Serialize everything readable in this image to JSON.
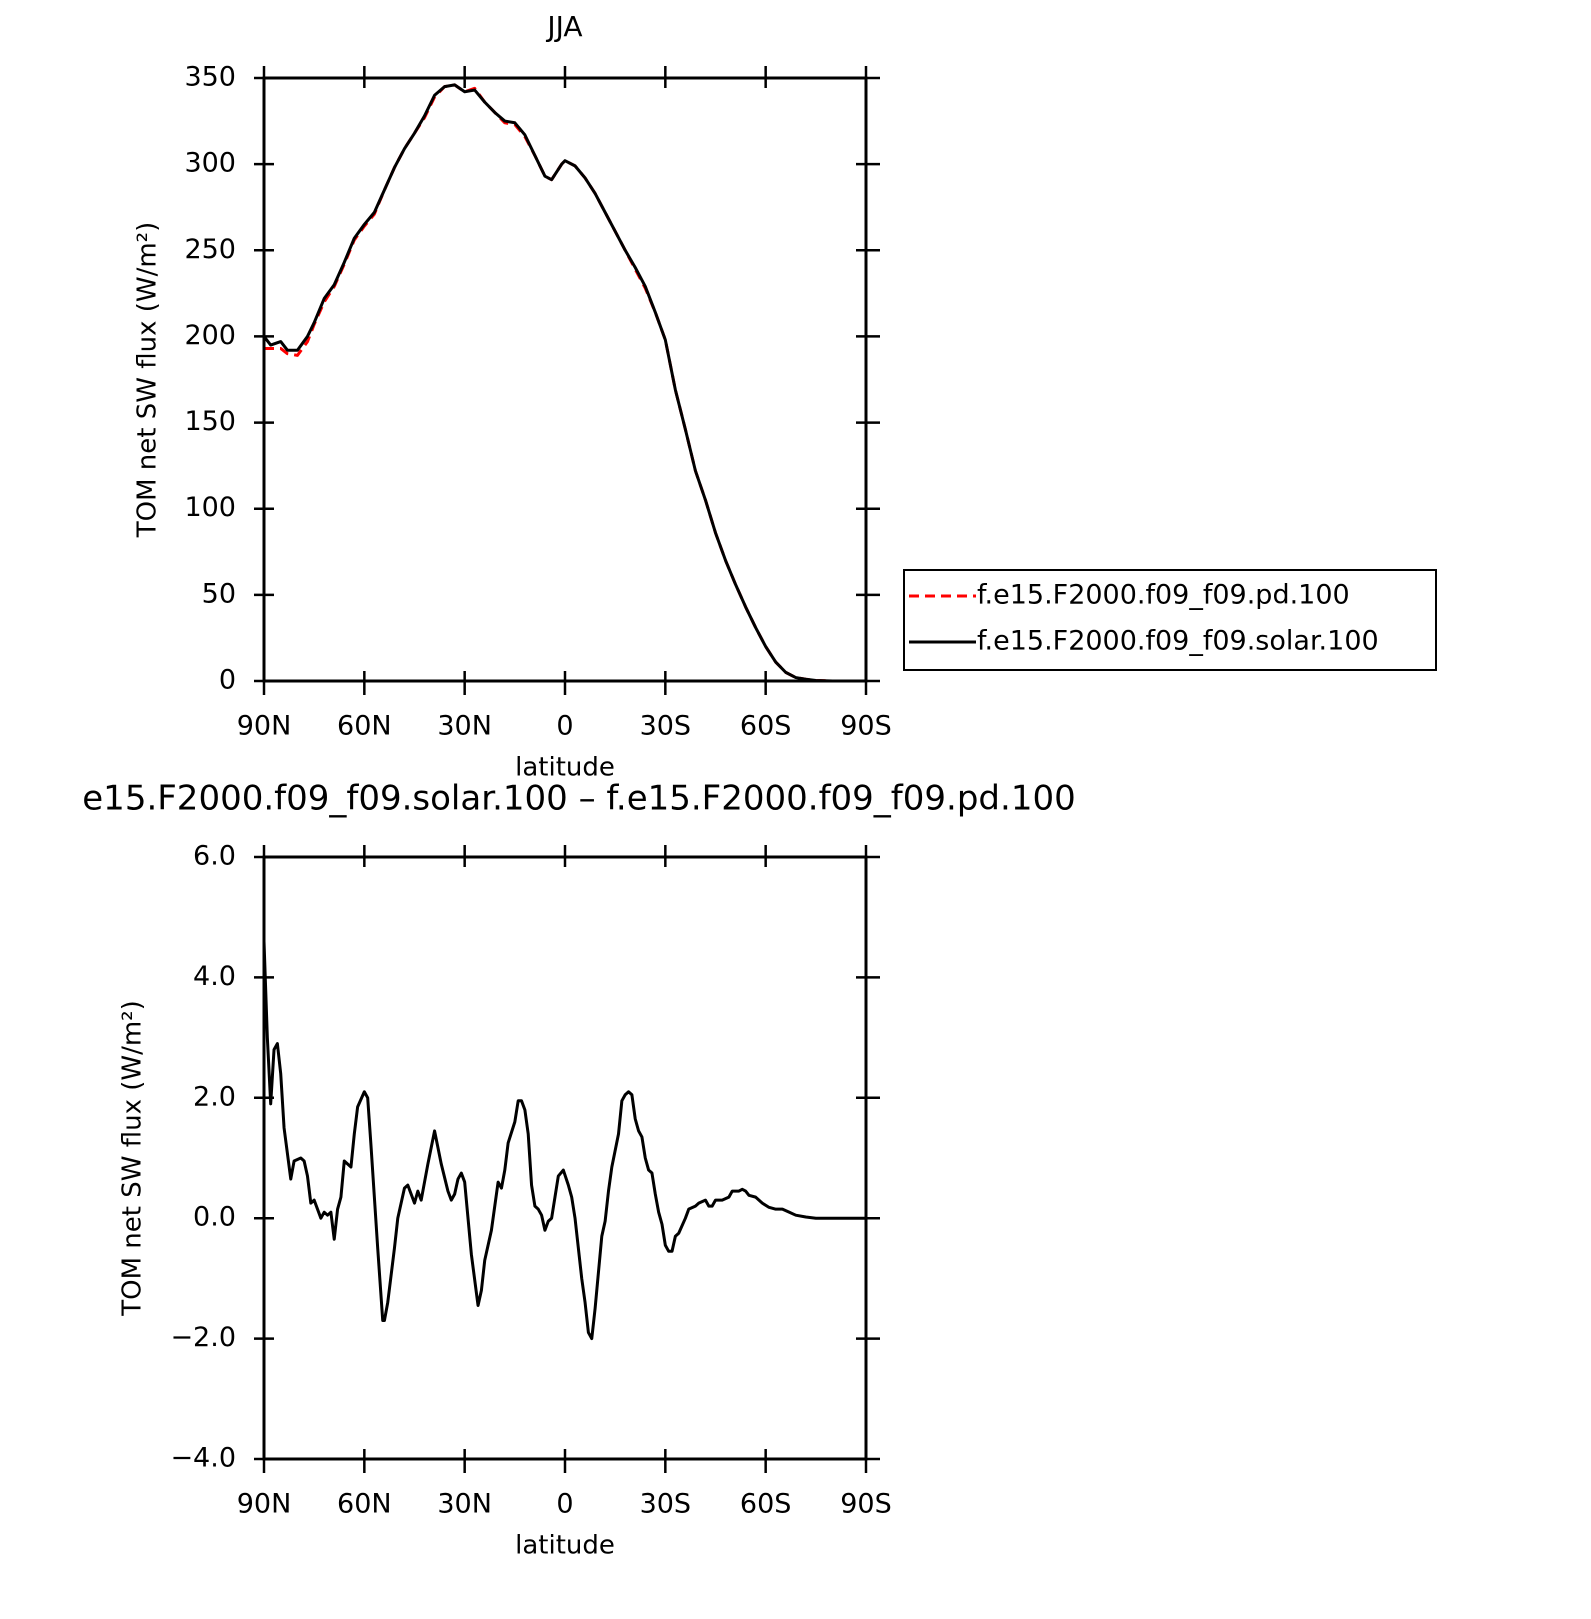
{
  "chart_data": [
    {
      "type": "line",
      "title": "JJA",
      "xlabel": "latitude",
      "ylabel": "TOM net SW flux (W/m²)",
      "x": [
        90,
        88,
        85,
        83,
        80,
        77,
        75,
        72,
        69,
        66,
        63,
        60,
        57,
        54,
        51,
        48,
        45,
        42,
        39,
        36,
        33,
        30,
        27,
        24,
        21,
        18,
        15,
        12,
        9,
        6,
        4,
        1,
        0,
        -3,
        -6,
        -9,
        -12,
        -15,
        -18,
        -21,
        -24,
        -27,
        -30,
        -33,
        -36,
        -39,
        -42,
        -45,
        -48,
        -51,
        -54,
        -57,
        -60,
        -63,
        -66,
        -69,
        -72,
        -75,
        -80,
        -85,
        -90
      ],
      "series": [
        {
          "name": "f.e15.F2000.f09_f09.pd.100",
          "color": "#ff0000",
          "linestyle": "dashed",
          "values": [
            193,
            193,
            193,
            190,
            189,
            197,
            207,
            220,
            229,
            242,
            256,
            264,
            271,
            285,
            298,
            309,
            318,
            327,
            339,
            345,
            346,
            342,
            344,
            336,
            330,
            324,
            323,
            316,
            305,
            293,
            291,
            300,
            302,
            299,
            292,
            283,
            272,
            261,
            250,
            239,
            228,
            214,
            198,
            169,
            146,
            122,
            105,
            86,
            70,
            56,
            43,
            31,
            20,
            11,
            5,
            2,
            1,
            0.3,
            0,
            0,
            0
          ]
        },
        {
          "name": "f.e15.F2000.f09_f09.solar.100",
          "color": "#000000",
          "linestyle": "solid",
          "values": [
            200,
            195,
            197,
            192,
            192,
            200,
            208,
            222,
            230,
            243,
            257,
            265,
            272,
            285,
            298,
            309,
            318,
            328,
            340,
            345,
            346,
            342,
            343,
            336,
            330,
            325,
            324,
            317,
            305,
            293,
            291,
            300,
            302,
            299,
            292,
            283,
            272,
            261,
            250,
            240,
            229,
            214,
            198,
            169,
            146,
            122,
            105,
            86,
            70,
            56,
            43,
            31,
            20,
            11,
            5,
            2,
            1,
            0.3,
            0,
            0,
            0
          ]
        }
      ],
      "xlim": [
        90,
        -90
      ],
      "xticks": [
        {
          "value": 90,
          "label": "90N"
        },
        {
          "value": 60,
          "label": "60N"
        },
        {
          "value": 30,
          "label": "30N"
        },
        0,
        {
          "value": -30,
          "label": "30S"
        },
        {
          "value": -60,
          "label": "60S"
        },
        {
          "value": -90,
          "label": "90S"
        }
      ],
      "ylim": [
        0,
        350
      ],
      "yticks": [
        0,
        50,
        100,
        150,
        200,
        250,
        300,
        350
      ],
      "legend": "right"
    },
    {
      "type": "line",
      "title": "e15.F2000.f09_f09.solar.100 – f.e15.F2000.f09_f09.pd.100",
      "xlabel": "latitude",
      "ylabel": "TOM net SW flux (W/m²)",
      "x": [
        90,
        89,
        88,
        87,
        86,
        85,
        84,
        82,
        81,
        79,
        78,
        77,
        76,
        75,
        73,
        72,
        71,
        70,
        69,
        68,
        67,
        66,
        64,
        63,
        62,
        60,
        59,
        58,
        56,
        54.5,
        54,
        53,
        51,
        50,
        48,
        47,
        45,
        44,
        43,
        41,
        39,
        37,
        35,
        34,
        33,
        32,
        31,
        30,
        28,
        26,
        25,
        24,
        22,
        20,
        19,
        18,
        17,
        15,
        14,
        13,
        12,
        11,
        10,
        9,
        8,
        7,
        6,
        5,
        4,
        3,
        2,
        0.5,
        -1,
        -2,
        -3,
        -5,
        -6,
        -7,
        -8,
        -9,
        -10,
        -11,
        -12,
        -13,
        -14,
        -16,
        -17,
        -18,
        -19,
        -20,
        -21,
        -22,
        -23,
        -24,
        -25,
        -26,
        -27,
        -28,
        -29,
        -30,
        -31,
        -32,
        -33,
        -34,
        -36,
        -37,
        -39,
        -40,
        -42,
        -43,
        -44,
        -45,
        -47,
        -49,
        -50,
        -52,
        -53,
        -54,
        -55,
        -57,
        -59,
        -61,
        -63,
        -65,
        -67,
        -69,
        -72,
        -75,
        -80,
        -90
      ],
      "series": [
        {
          "color": "#000000",
          "linestyle": "solid",
          "values": [
            4.6,
            3.0,
            1.9,
            2.8,
            2.9,
            2.4,
            1.5,
            0.65,
            0.95,
            1.0,
            0.95,
            0.7,
            0.25,
            0.3,
            0,
            0.1,
            0.05,
            0.1,
            -0.35,
            0.15,
            0.35,
            0.95,
            0.85,
            1.4,
            1.85,
            2.1,
            2.0,
            1.2,
            -0.5,
            -1.7,
            -1.7,
            -1.4,
            -0.5,
            0,
            0.5,
            0.55,
            0.25,
            0.45,
            0.3,
            0.9,
            1.45,
            0.9,
            0.45,
            0.3,
            0.4,
            0.65,
            0.75,
            0.6,
            -0.6,
            -1.45,
            -1.2,
            -0.7,
            -0.2,
            0.6,
            0.5,
            0.8,
            1.25,
            1.6,
            1.95,
            1.95,
            1.8,
            1.4,
            0.55,
            0.2,
            0.15,
            0.05,
            -0.2,
            -0.05,
            0,
            0.35,
            0.7,
            0.8,
            0.55,
            0.35,
            0,
            -1.0,
            -1.4,
            -1.9,
            -2.0,
            -1.5,
            -0.9,
            -0.3,
            -0.05,
            0.45,
            0.85,
            1.4,
            1.95,
            2.05,
            2.1,
            2.05,
            1.65,
            1.45,
            1.35,
            1.0,
            0.8,
            0.75,
            0.4,
            0.1,
            -0.1,
            -0.45,
            -0.55,
            -0.55,
            -0.3,
            -0.25,
            0,
            0.15,
            0.2,
            0.25,
            0.3,
            0.2,
            0.2,
            0.3,
            0.3,
            0.35,
            0.45,
            0.45,
            0.48,
            0.45,
            0.38,
            0.35,
            0.25,
            0.18,
            0.15,
            0.15,
            0.1,
            0.05,
            0.02,
            0,
            0,
            0
          ]
        }
      ],
      "xlim": [
        90,
        -90
      ],
      "xticks": [
        {
          "value": 90,
          "label": "90N"
        },
        {
          "value": 60,
          "label": "60N"
        },
        {
          "value": 30,
          "label": "30N"
        },
        0,
        {
          "value": -30,
          "label": "30S"
        },
        {
          "value": -60,
          "label": "60S"
        },
        {
          "value": -90,
          "label": "90S"
        }
      ],
      "ylim": [
        -4,
        6
      ],
      "yticks": [
        {
          "value": 6,
          "label": "6.0"
        },
        {
          "value": 4,
          "label": "4.0"
        },
        {
          "value": 2,
          "label": "2.0"
        },
        {
          "value": 0,
          "label": "0.0"
        },
        {
          "value": -2,
          "label": "−2.0"
        },
        {
          "value": -4,
          "label": "−4.0"
        }
      ]
    }
  ]
}
